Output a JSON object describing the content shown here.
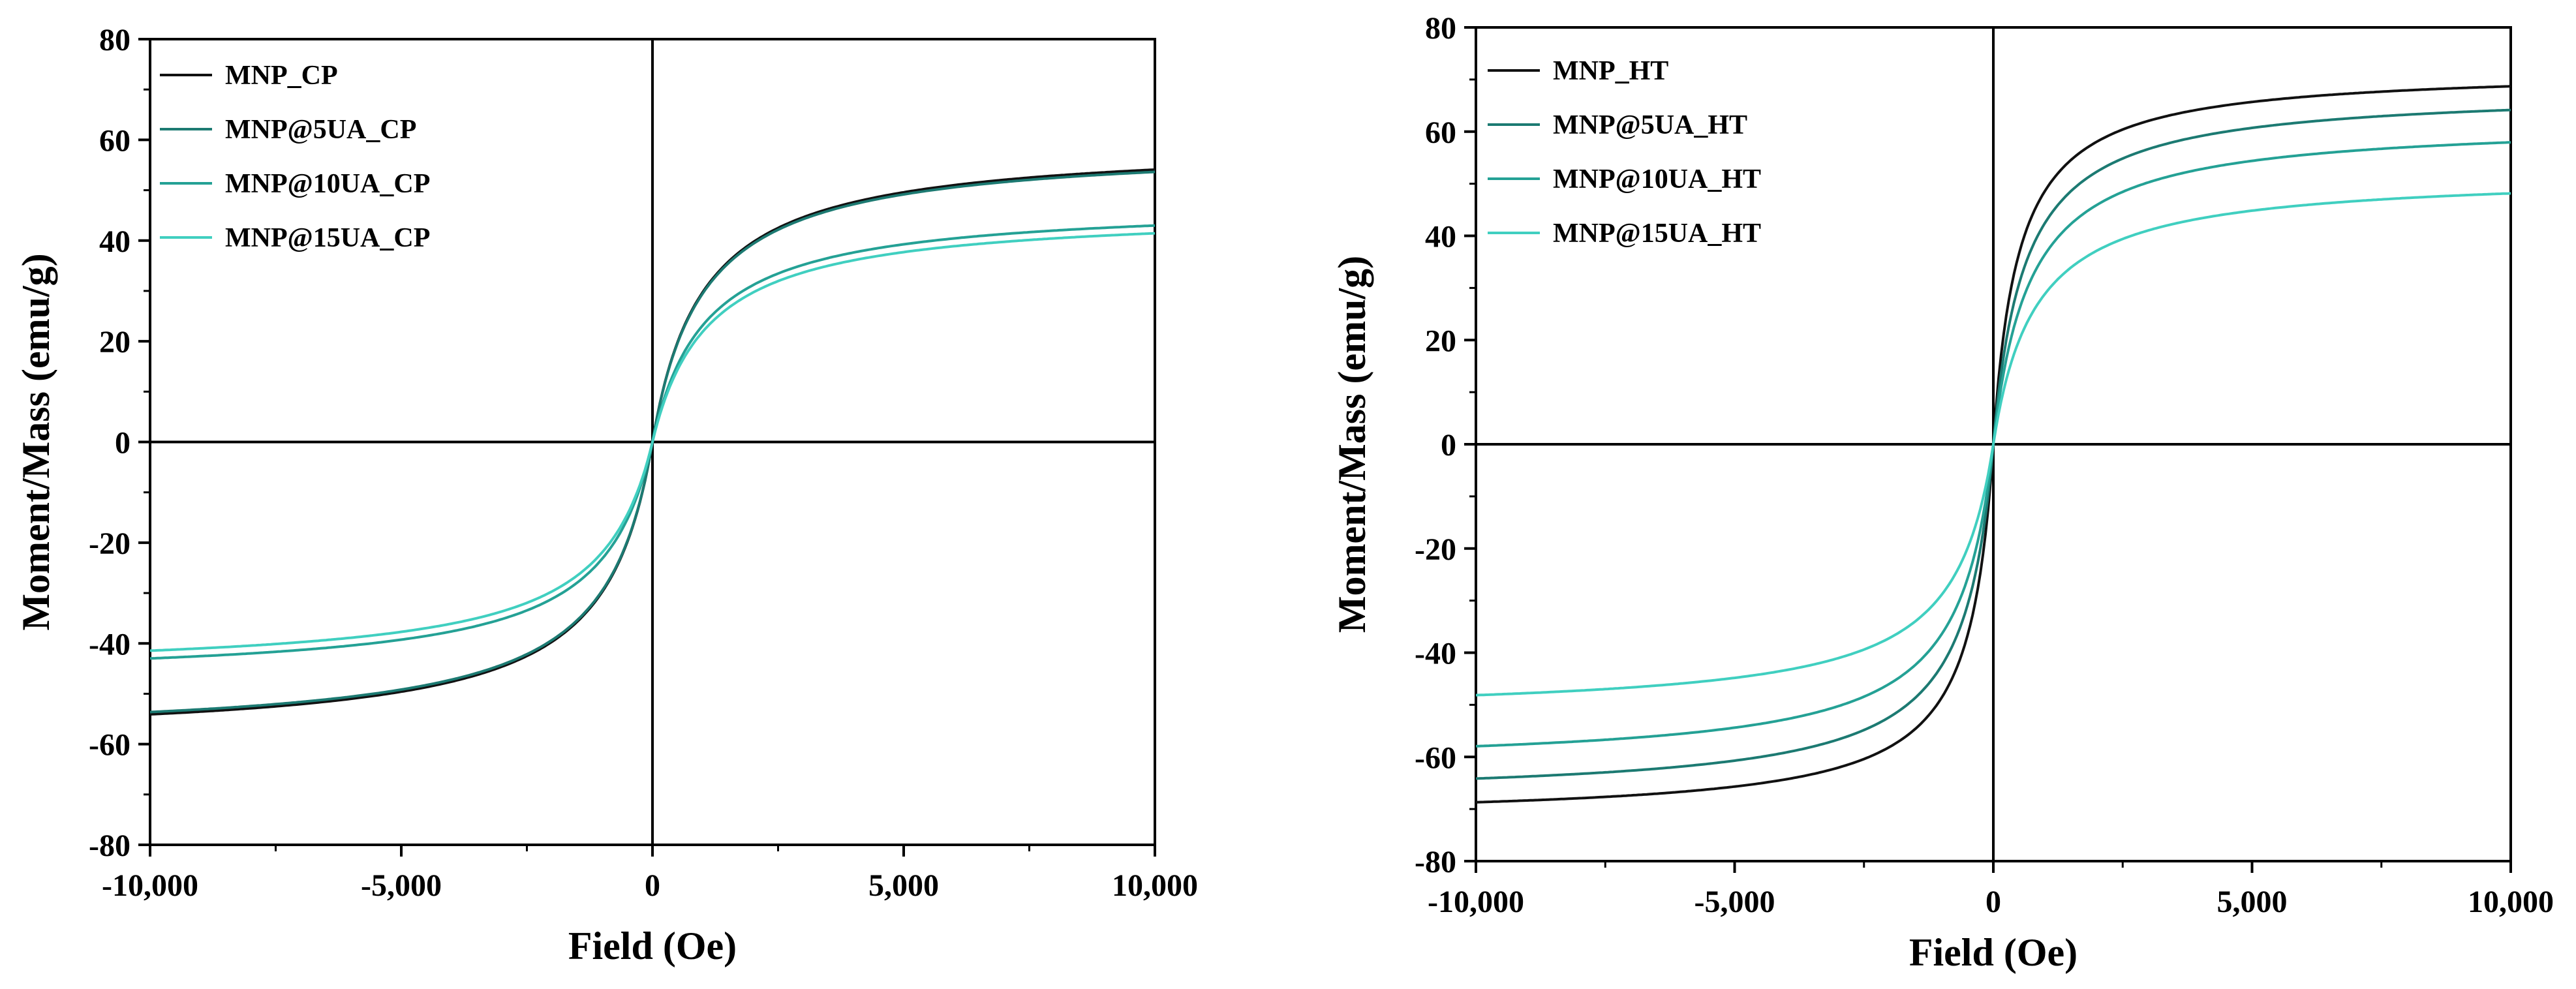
{
  "chart_data": [
    {
      "type": "line",
      "xlabel": "Field (Oe)",
      "ylabel": "Moment/Mass (emu/g)",
      "xlim": [
        -10000,
        10000
      ],
      "ylim": [
        -80,
        80
      ],
      "xticks": [
        -10000,
        -5000,
        0,
        5000,
        10000
      ],
      "xtick_labels": [
        "-10,000",
        "-5,000",
        "0",
        "5,000",
        "10,000"
      ],
      "yticks": [
        -80,
        -60,
        -40,
        -20,
        0,
        20,
        40,
        60,
        80
      ],
      "ytick_labels": [
        "-80",
        "-60",
        "-40",
        "-20",
        "0",
        "20",
        "40",
        "60",
        "80"
      ],
      "legend_position": "top-left",
      "series": [
        {
          "name": "MNP_CP",
          "color": "#111111",
          "ms": 59.5,
          "h0": 1000
        },
        {
          "name": "MNP@5UA_CP",
          "color": "#1c7a72",
          "ms": 59.0,
          "h0": 1000
        },
        {
          "name": "MNP@10UA_CP",
          "color": "#24a195",
          "ms": 47.5,
          "h0": 1050
        },
        {
          "name": "MNP@15UA_CP",
          "color": "#40cfc0",
          "ms": 46.0,
          "h0": 1100
        }
      ]
    },
    {
      "type": "line",
      "xlabel": "Field (Oe)",
      "ylabel": "Moment/Mass (emu/g)",
      "xlim": [
        -10000,
        10000
      ],
      "ylim": [
        -80,
        80
      ],
      "xticks": [
        -10000,
        -5000,
        0,
        5000,
        10000
      ],
      "xtick_labels": [
        "-10,000",
        "-5,000",
        "0",
        "5,000",
        "10,000"
      ],
      "yticks": [
        -80,
        -60,
        -40,
        -20,
        0,
        20,
        40,
        60,
        80
      ],
      "ytick_labels": [
        "-80",
        "-60",
        "-40",
        "-20",
        "0",
        "20",
        "40",
        "60",
        "80"
      ],
      "legend_position": "top-left",
      "series": [
        {
          "name": "MNP_HT",
          "color": "#111111",
          "ms": 72.0,
          "h0": 480
        },
        {
          "name": "MNP@5UA_HT",
          "color": "#1c7a72",
          "ms": 68.0,
          "h0": 600
        },
        {
          "name": "MNP@10UA_HT",
          "color": "#24a195",
          "ms": 62.0,
          "h0": 700
        },
        {
          "name": "MNP@15UA_HT",
          "color": "#40cfc0",
          "ms": 52.0,
          "h0": 800
        }
      ]
    }
  ]
}
